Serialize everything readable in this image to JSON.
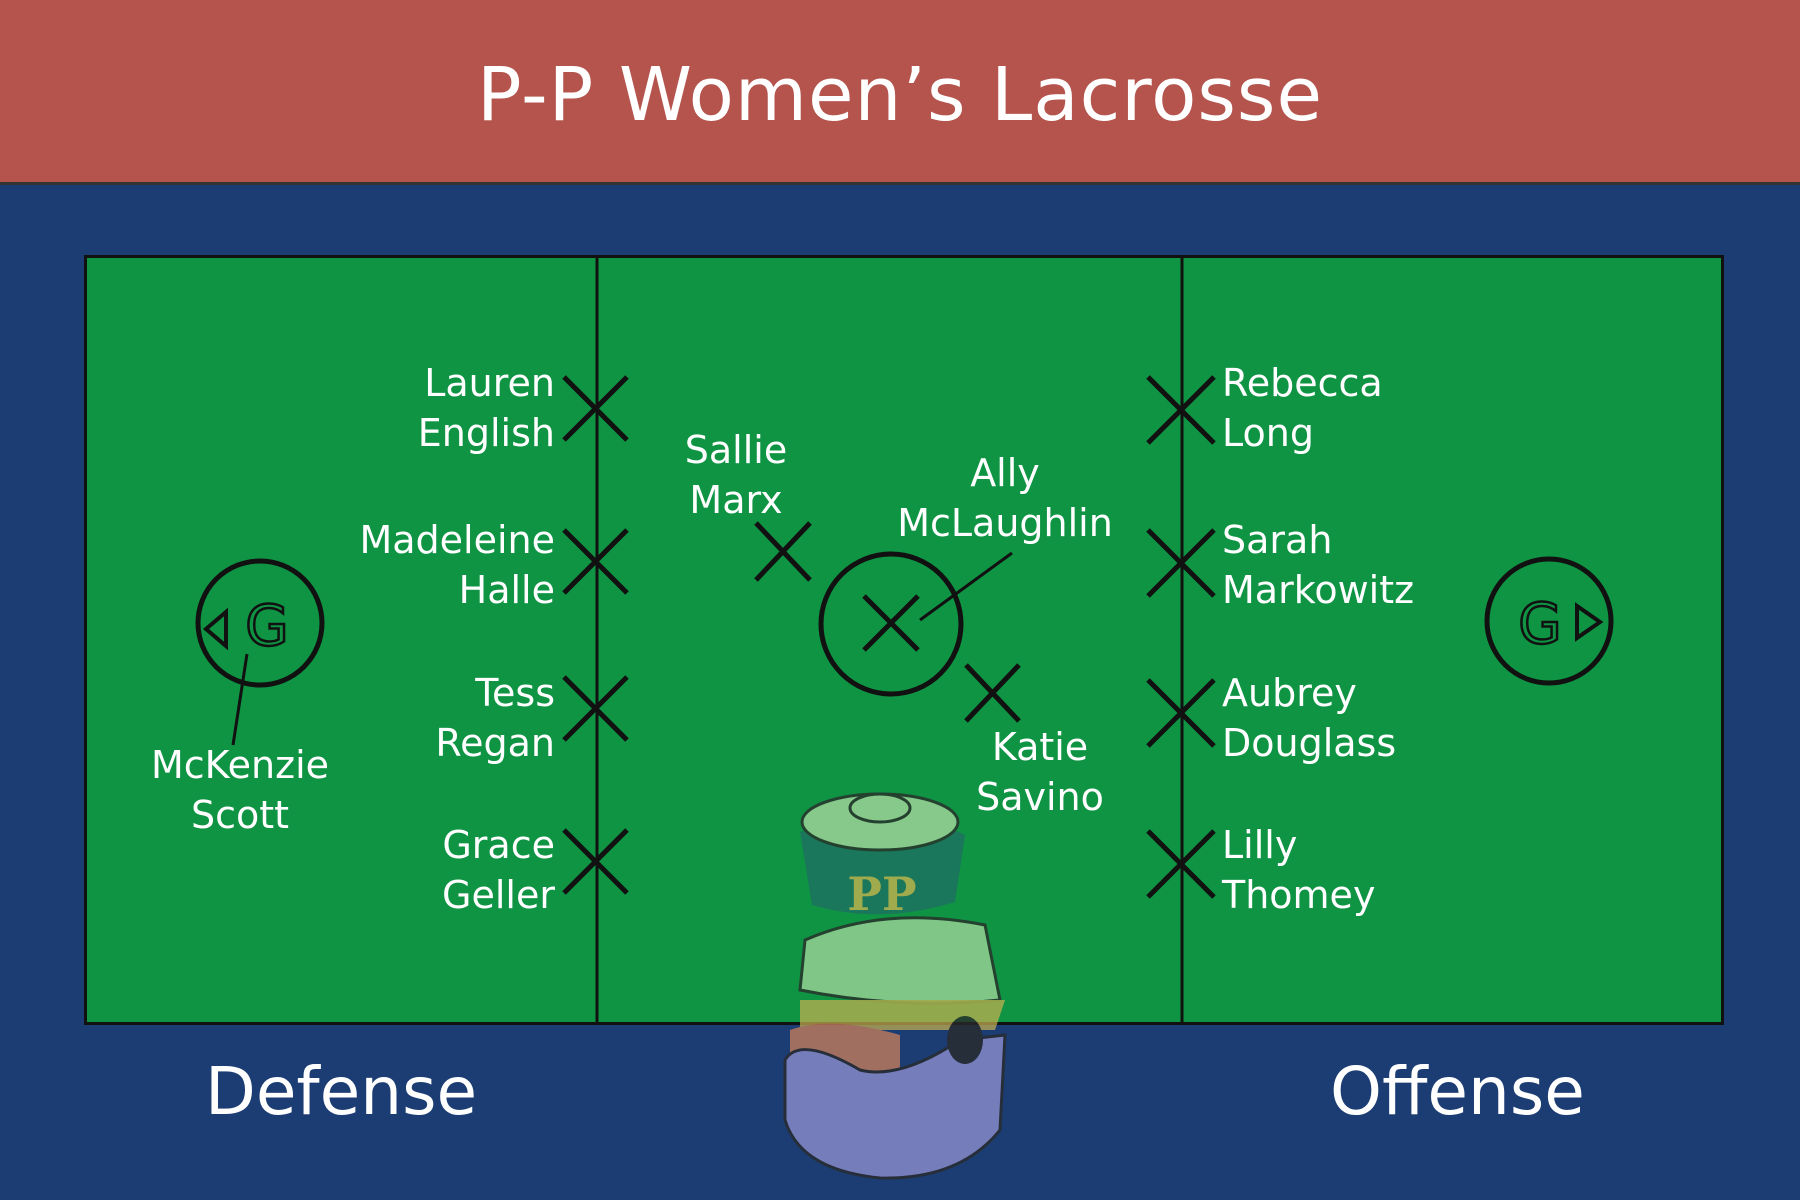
{
  "title": "P-P Women’s Lacrosse",
  "colors": {
    "banner": "#b4544d",
    "background": "#1c3d73",
    "field": "#0f9444",
    "lines": "#111111",
    "text": "#ffffff"
  },
  "goalie_marker": "G",
  "sections": {
    "defense": "Defense",
    "offense": "Offense"
  },
  "players": {
    "goalie": [
      "McKenzie",
      "Scott"
    ],
    "defense": [
      [
        "Lauren",
        "English"
      ],
      [
        "Madeleine",
        "Halle"
      ],
      [
        "Tess",
        "Regan"
      ],
      [
        "Grace",
        "Geller"
      ]
    ],
    "midfield": {
      "left": [
        "Sallie",
        "Marx"
      ],
      "center": [
        "Ally",
        "McLaughlin"
      ],
      "right": [
        "Katie",
        "Savino"
      ]
    },
    "attack": [
      [
        "Rebecca",
        "Long"
      ],
      [
        "Sarah",
        "Markowitz"
      ],
      [
        "Aubrey",
        "Douglass"
      ],
      [
        "Lilly",
        "Thomey"
      ]
    ]
  },
  "mascot_monogram": "PP",
  "icons": [
    "player-x-mark",
    "goal-circle",
    "arrow-triangle",
    "mascot-logo"
  ]
}
